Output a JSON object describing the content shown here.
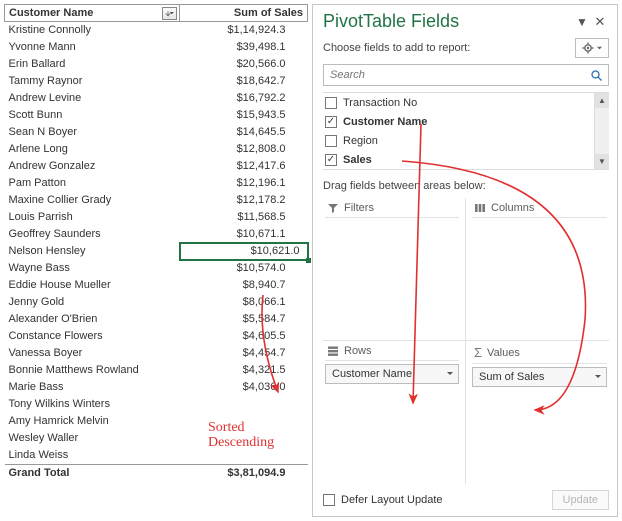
{
  "pivot": {
    "headers": {
      "name": "Customer Name",
      "sales": "Sum of Sales"
    },
    "rows": [
      {
        "name": "Kristine Connolly",
        "val": "$1,14,924.3"
      },
      {
        "name": "Yvonne Mann",
        "val": "$39,498.1"
      },
      {
        "name": "Erin Ballard",
        "val": "$20,566.0"
      },
      {
        "name": "Tammy Raynor",
        "val": "$18,642.7"
      },
      {
        "name": "Andrew Levine",
        "val": "$16,792.2"
      },
      {
        "name": "Scott Bunn",
        "val": "$15,943.5"
      },
      {
        "name": "Sean N Boyer",
        "val": "$14,645.5"
      },
      {
        "name": "Arlene Long",
        "val": "$12,808.0"
      },
      {
        "name": "Andrew Gonzalez",
        "val": "$12,417.6"
      },
      {
        "name": "Pam Patton",
        "val": "$12,196.1"
      },
      {
        "name": "Maxine Collier Grady",
        "val": "$12,178.2"
      },
      {
        "name": "Louis Parrish",
        "val": "$11,568.5"
      },
      {
        "name": "Geoffrey Saunders",
        "val": "$10,671.1"
      },
      {
        "name": "Nelson Hensley",
        "val": "$10,621.0",
        "selected": true
      },
      {
        "name": "Wayne Bass",
        "val": "$10,574.0"
      },
      {
        "name": "Eddie House Mueller",
        "val": "$8,940.7"
      },
      {
        "name": "Jenny Gold",
        "val": "$8,066.1"
      },
      {
        "name": "Alexander O'Brien",
        "val": "$5,584.7"
      },
      {
        "name": "Constance Flowers",
        "val": "$4,605.5"
      },
      {
        "name": "Vanessa Boyer",
        "val": "$4,454.7"
      },
      {
        "name": "Bonnie Matthews Rowland",
        "val": "$4,321.5"
      },
      {
        "name": "Marie Bass",
        "val": "$4,036.0"
      },
      {
        "name": "Tony Wilkins Winters",
        "val": ""
      },
      {
        "name": "Amy Hamrick Melvin",
        "val": ""
      },
      {
        "name": "Wesley Waller",
        "val": ""
      },
      {
        "name": "Linda Weiss",
        "val": ""
      }
    ],
    "total": {
      "label": "Grand Total",
      "val": "$3,81,094.9"
    }
  },
  "pane": {
    "title": "PivotTable Fields",
    "choose": "Choose fields to add to report:",
    "search_placeholder": "Search",
    "fields": [
      {
        "label": "Transaction No",
        "checked": false
      },
      {
        "label": "Customer Name",
        "checked": true
      },
      {
        "label": "Region",
        "checked": false
      },
      {
        "label": "Sales",
        "checked": true
      }
    ],
    "drag_label": "Drag fields between areas below:",
    "areas": {
      "filters": "Filters",
      "columns": "Columns",
      "rows": "Rows",
      "values": "Values"
    },
    "pills": {
      "rows": "Customer Name",
      "values": "Sum of Sales"
    },
    "defer": "Defer Layout Update",
    "update": "Update"
  },
  "annot": {
    "text1": "Sorted",
    "text2": "Descending",
    "arrow_color": "#e03030"
  }
}
